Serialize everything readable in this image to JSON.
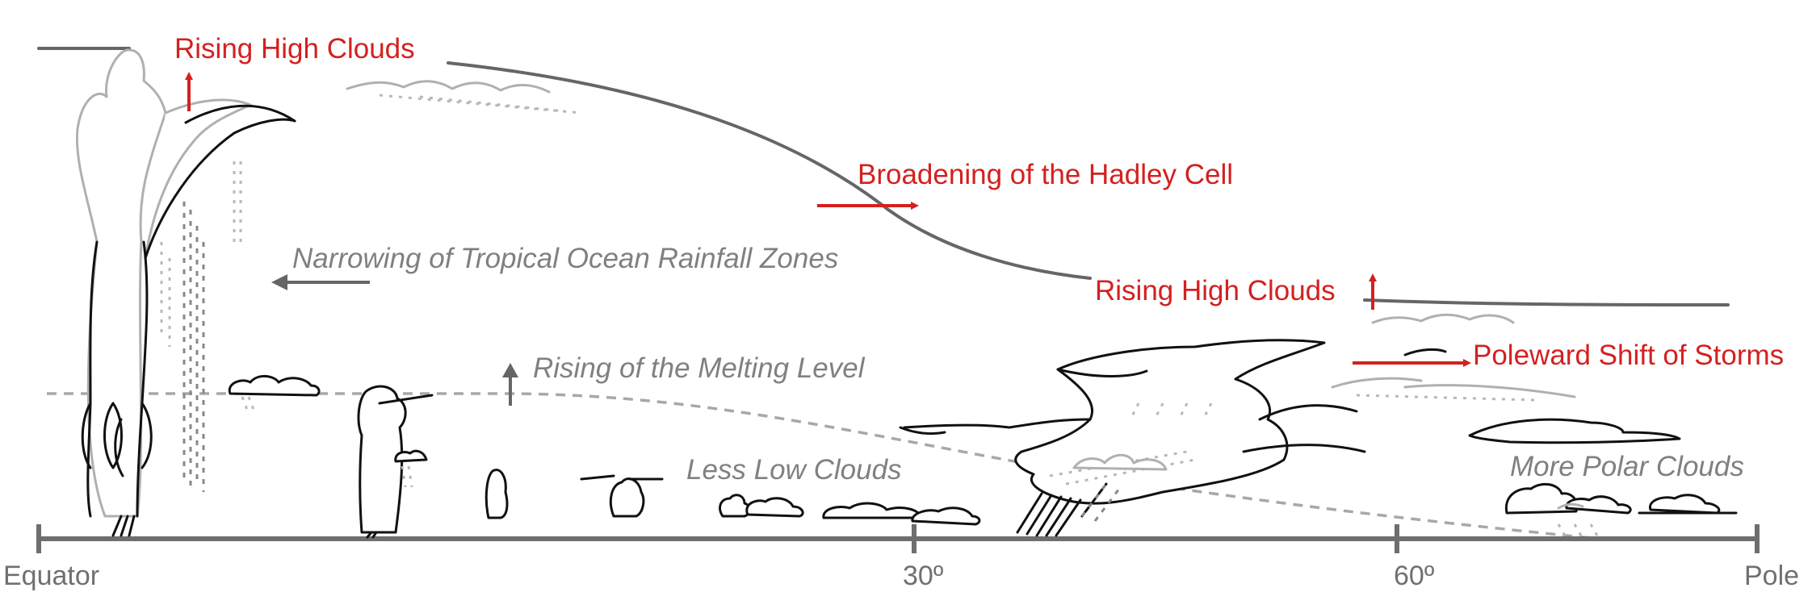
{
  "labels": {
    "rising_high_clouds_tropics": "Rising High Clouds",
    "broadening_hadley": "Broadening of the Hadley Cell",
    "narrowing_rainfall": "Narrowing of Tropical Ocean Rainfall Zones",
    "rising_melting_level": "Rising of the Melting Level",
    "rising_high_clouds_midlat": "Rising High Clouds",
    "poleward_shift": "Poleward Shift of Storms",
    "less_low_clouds": "Less Low Clouds",
    "more_polar_clouds": "More Polar Clouds"
  },
  "axis": {
    "ticks": [
      "Equator",
      "30º",
      "60º",
      "Pole"
    ]
  },
  "colors": {
    "change_red": "#d42020",
    "text_grey": "#808080",
    "tropopause_grey": "#6e6e6e",
    "cloud_black": "#111111",
    "cloud_light": "#b0b0b0"
  }
}
